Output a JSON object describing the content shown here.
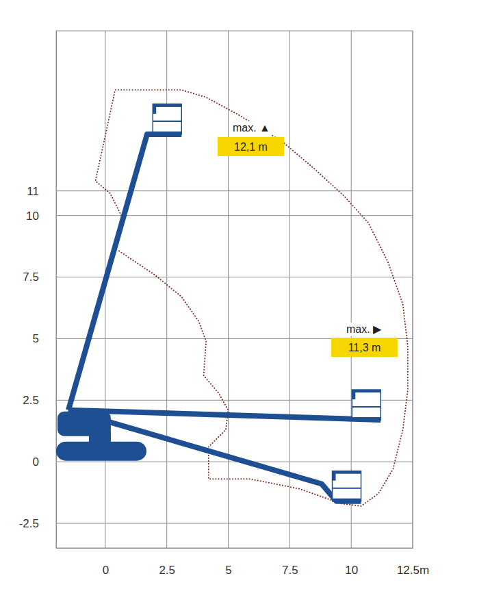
{
  "chart_data": {
    "type": "line",
    "xlim": [
      -2,
      12.5
    ],
    "ylim": [
      -3.5,
      17.5
    ],
    "xticks": [
      0,
      2.5,
      5,
      7.5,
      10,
      {
        "value": 12.5,
        "label": "12.5m"
      }
    ],
    "yticks": [
      -2.5,
      0,
      2.5,
      5,
      7.5,
      10,
      11
    ],
    "grid": true,
    "series": [
      {
        "color": "#7b2b1e",
        "line_style": "dotted",
        "x": [
          0.7,
          0.2,
          -0.4,
          0.4,
          3.1,
          4.1,
          5.4,
          7.2,
          8.5,
          9.7,
          10.7,
          11.5,
          12.1,
          12.3,
          12.3,
          12.1,
          11.7,
          11.1,
          10.4,
          9.6,
          7.9,
          5.9,
          4.2,
          4.2,
          4.9,
          5.0,
          4.6,
          4.0,
          4.1,
          3.8,
          3.1,
          2.0,
          0.5
        ],
        "values": [
          9.9,
          10.9,
          11.4,
          15.1,
          15.1,
          14.8,
          14.1,
          13.0,
          11.9,
          10.8,
          9.7,
          8.1,
          6.4,
          4.7,
          2.9,
          1.3,
          -0.3,
          -1.3,
          -1.8,
          -1.7,
          -1.1,
          -0.7,
          -0.7,
          0.6,
          1.3,
          2.1,
          2.8,
          3.5,
          4.9,
          5.7,
          6.7,
          7.6,
          8.6
        ]
      },
      {
        "color": "#1e4f92",
        "line_style": "solid",
        "x": [
          -1.5,
          1.7,
          3.1
        ],
        "values": [
          2.1,
          13.3,
          13.3
        ]
      },
      {
        "color": "#1e4f92",
        "line_style": "solid",
        "x": [
          -1.5,
          11.2
        ],
        "values": [
          2.1,
          1.7
        ]
      },
      {
        "color": "#1e4f92",
        "line_style": "solid",
        "x": [
          -1.5,
          8.8,
          9.4,
          10.4
        ],
        "values": [
          2.1,
          -0.9,
          -1.6,
          -1.6
        ]
      }
    ],
    "annotations": [
      {
        "label": "max. ▲",
        "box_text": "12,1 m"
      },
      {
        "label": "max. ▶",
        "box_text": "11,3 m"
      }
    ]
  }
}
